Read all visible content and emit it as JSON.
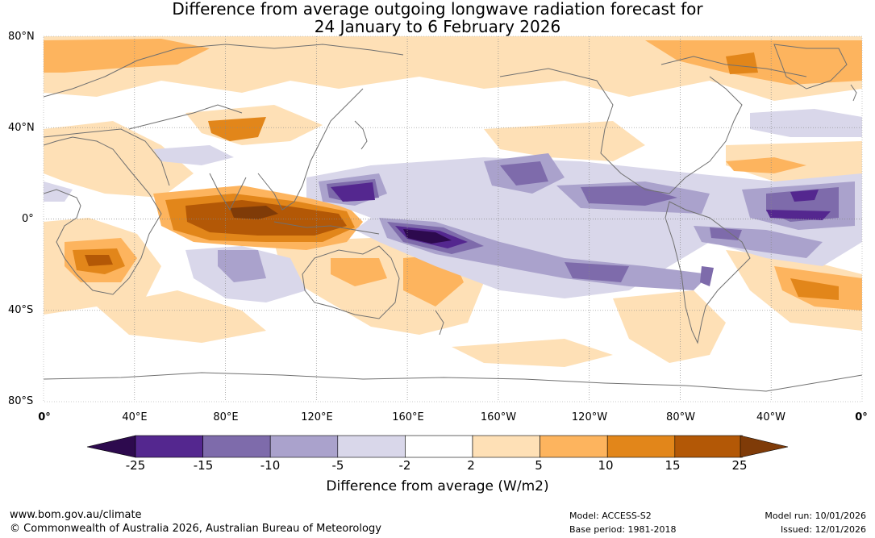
{
  "title": {
    "line1": "Difference from average outgoing longwave radiation forecast for",
    "line2": "24 January to 6 February 2026"
  },
  "axes": {
    "lat_labels": [
      "80°N",
      "40°N",
      "0°",
      "40°S",
      "80°S"
    ],
    "lon_labels": [
      "0°",
      "40°E",
      "80°E",
      "120°E",
      "160°E",
      "160°W",
      "120°W",
      "80°W",
      "40°W",
      "0°"
    ]
  },
  "colorbar": {
    "ticks": [
      "-25",
      "-15",
      "-10",
      "-5",
      "-2",
      "2",
      "5",
      "10",
      "15",
      "25"
    ],
    "colors": [
      "#2d0a4e",
      "#54278f",
      "#7e6bab",
      "#aaa2cc",
      "#d9d7ea",
      "#ffffff",
      "#fee0b6",
      "#fdb45e",
      "#e2861a",
      "#b35806",
      "#7f3b08"
    ],
    "label": "Difference from average (W/m2)"
  },
  "footer": {
    "url": "www.bom.gov.au/climate",
    "copyright": "© Commonwealth of Australia 2026, Australian Bureau of Meteorology",
    "model": "Model: ACCESS-S2",
    "base_period": "Base period: 1981-2018",
    "model_run": "Model run: 10/01/2026",
    "issued": "Issued: 12/01/2026"
  }
}
